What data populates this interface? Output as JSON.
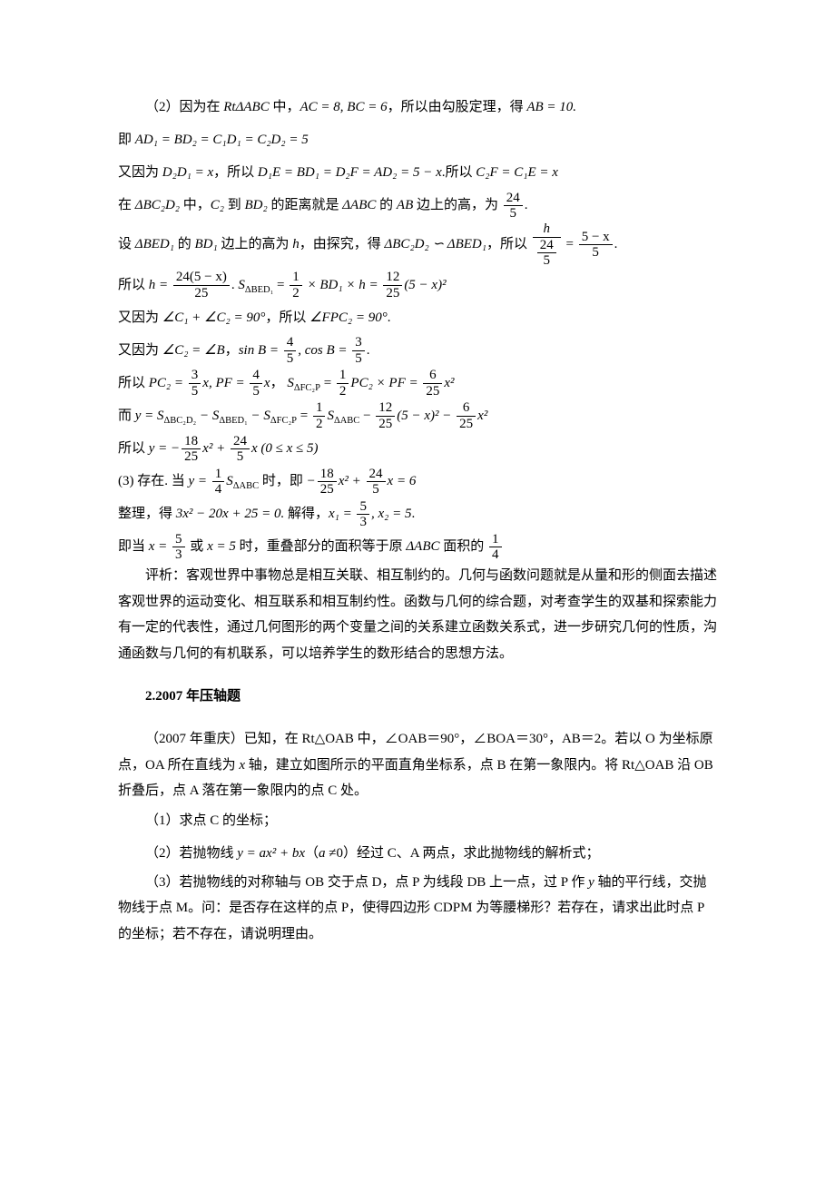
{
  "lines": {
    "l1_pre": "（2）因为在 ",
    "l1_math": "RtΔABC",
    "l1_mid": " 中，",
    "l1_eq": "AC = 8, BC = 6",
    "l1_suf": "，所以由勾股定理，得 ",
    "l1_ab": "AB = 10.",
    "l2_pre": "即 ",
    "l2_eq": "AD₁ = BD₂ = C₁D₁ = C₂D₂ = 5",
    "l3_pre": "又因为 ",
    "l3_a": "D₂D₁ = x",
    "l3_mid": "，所以 ",
    "l3_b": "D₁E = BD₁ = D₂F = AD₂ = 5 − x",
    "l3_suf": ".所以 ",
    "l3_c": "C₂F = C₁E = x",
    "l4_pre": "在 ",
    "l4_a": "ΔBC₂D₂",
    "l4_mid1": " 中，",
    "l4_b": "C₂",
    "l4_mid2": " 到 ",
    "l4_c": "BD₂",
    "l4_mid3": " 的距离就是 ",
    "l4_d": "ΔABC",
    "l4_mid4": " 的 ",
    "l4_e": "AB",
    "l4_suf": " 边上的高，为 ",
    "l4_frac_num": "24",
    "l4_frac_den": "5",
    "l4_end": ".",
    "l5_pre": "设 ",
    "l5_a": "ΔBED₁",
    "l5_mid1": " 的 ",
    "l5_b": "BD₁",
    "l5_mid2": " 边上的高为 ",
    "l5_c": "h",
    "l5_mid3": "，由探究，得 ",
    "l5_d": "ΔBC₂D₂ ∽ ΔBED₁",
    "l5_mid4": "，所以 ",
    "l5_f1n": "h",
    "l5_f1d_n": "24",
    "l5_f1d_d": "5",
    "l5_eq": " = ",
    "l5_f2n": "5 − x",
    "l5_f2d": "5",
    "l5_end": ".",
    "l6_pre": "所以 ",
    "l6_a": "h = ",
    "l6_f_num": "24(5 − x)",
    "l6_f_den": "25",
    "l6_dot": ". ",
    "l6_s": "S",
    "l6_sub": "ΔBED₁",
    "l6_eq1": " = ",
    "l6_f2n": "1",
    "l6_f2d": "2",
    "l6_mid": " × BD₁ × h = ",
    "l6_f3n": "12",
    "l6_f3d": "25",
    "l6_suf": "(5 − x)²",
    "l7_pre": "又因为 ",
    "l7_a": "∠C₁ + ∠C₂ = 90°",
    "l7_mid": "，所以 ",
    "l7_b": "∠FPC₂ = 90°",
    "l7_end": ".",
    "l8_pre": "又因为 ",
    "l8_a": "∠C₂ = ∠B",
    "l8_mid": "，",
    "l8_b": "sin B = ",
    "l8_f1n": "4",
    "l8_f1d": "5",
    "l8_c": ", cos B = ",
    "l8_f2n": "3",
    "l8_f2d": "5",
    "l8_end": ".",
    "l9_pre": "所以 ",
    "l9_a": "PC₂ = ",
    "l9_f1n": "3",
    "l9_f1d": "5",
    "l9_b": "x, PF = ",
    "l9_f2n": "4",
    "l9_f2d": "5",
    "l9_c": "x",
    "l9_mid": "， ",
    "l9_d": "S",
    "l9_dsub": "ΔFC₂P",
    "l9_eq": " = ",
    "l9_f3n": "1",
    "l9_f3d": "2",
    "l9_e": "PC₂ × PF = ",
    "l9_f4n": "6",
    "l9_f4d": "25",
    "l9_f": "x²",
    "l10_pre": "而 ",
    "l10_y": "y = S",
    "l10_s1": "ΔBC₂D₂",
    "l10_m1": " − S",
    "l10_s2": "ΔBED₁",
    "l10_m2": " − S",
    "l10_s3": "ΔFC₂P",
    "l10_eq": " = ",
    "l10_f1n": "1",
    "l10_f1d": "2",
    "l10_mid": "S",
    "l10_s4": "ΔABC",
    "l10_m3": " − ",
    "l10_f2n": "12",
    "l10_f2d": "25",
    "l10_a": "(5 − x)² − ",
    "l10_f3n": "6",
    "l10_f3d": "25",
    "l10_b": "x²",
    "l11_pre": "所以 ",
    "l11_a": "y = −",
    "l11_f1n": "18",
    "l11_f1d": "25",
    "l11_b": "x² + ",
    "l11_f2n": "24",
    "l11_f2d": "5",
    "l11_c": "x (0 ≤ x ≤ 5)",
    "l12_pre": "(3) 存在. 当 ",
    "l12_a": "y = ",
    "l12_f1n": "1",
    "l12_f1d": "4",
    "l12_b": "S",
    "l12_bsub": "ΔABC",
    "l12_mid": " 时，即 ",
    "l12_c": "−",
    "l12_f2n": "18",
    "l12_f2d": "25",
    "l12_d": "x² + ",
    "l12_f3n": "24",
    "l12_f3d": "5",
    "l12_e": "x = 6",
    "l13_pre": "整理，得 ",
    "l13_a": "3x² − 20x + 25 = 0.",
    "l13_mid": " 解得，",
    "l13_b": "x₁ = ",
    "l13_fn": "5",
    "l13_fd": "3",
    "l13_c": ", x₂ = 5",
    "l13_end": ".",
    "l14_pre": "即当 ",
    "l14_a": "x = ",
    "l14_fn": "5",
    "l14_fd": "3",
    "l14_mid": " 或 ",
    "l14_b": "x = 5",
    "l14_mid2": " 时，重叠部分的面积等于原 ",
    "l14_c": "ΔABC",
    "l14_mid3": " 面积的 ",
    "l14_f2n": "1",
    "l14_f2d": "4",
    "p1": "评析：客观世界中事物总是相互关联、相互制约的。几何与函数问题就是从量和形的侧面去描述客观世界的运动变化、相互联系和相互制约性。函数与几何的综合题，对考查学生的双基和探索能力有一定的代表性，通过几何图形的两个变量之间的关系建立函数关系式，进一步研究几何的性质，沟通函数与几何的有机联系，可以培养学生的数形结合的思想方法。",
    "sec": "2.2007 年压轴题",
    "p2a": "（2007 年重庆）已知，在 Rt△OAB 中，∠OAB＝90°，∠BOA＝30°，AB＝2。若以 O 为坐标原点，OA 所在直线为 ",
    "p2m": "x",
    "p2b": " 轴，建立如图所示的平面直角坐标系，点 B 在第一象限内。将 Rt△OAB 沿 OB 折叠后，点 A 落在第一象限内的点 C 处。",
    "q1": "（1）求点 C 的坐标；",
    "q2a": "（2）若抛物线 ",
    "q2m": "y = ax² + bx",
    "q2b": "（",
    "q2c": "a",
    "q2d": " ≠0）经过 C、A 两点，求此抛物线的解析式；",
    "q3a": "（3）若抛物线的对称轴与 OB 交于点 D，点 P 为线段 DB 上一点，过 P 作 ",
    "q3m": "y",
    "q3b": " 轴的平行线，交抛物线于点 M。问：是否存在这样的点 P，使得四边形 CDPM 为等腰梯形？若存在，请求出此时点 P 的坐标；若不存在，请说明理由。"
  }
}
